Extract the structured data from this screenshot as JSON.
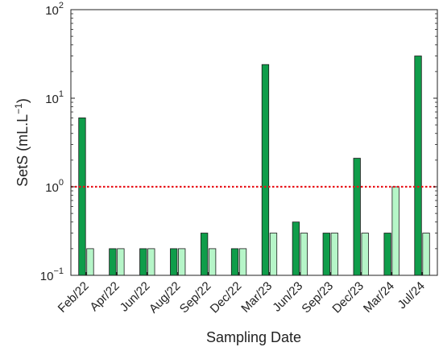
{
  "chart_data": {
    "type": "bar",
    "xlabel": "Sampling Date",
    "ylabel": "SetS (mL.L",
    "ylabel_sup": "−1",
    "ylabel_close": ")",
    "y_scale": "log",
    "ylim": [
      0.1,
      100
    ],
    "y_ticks": [
      {
        "value": 0.1,
        "base": "10",
        "exp": "−1"
      },
      {
        "value": 1,
        "base": "10",
        "exp": "0"
      },
      {
        "value": 10,
        "base": "10",
        "exp": "1"
      },
      {
        "value": 100,
        "base": "10",
        "exp": "2"
      }
    ],
    "categories": [
      "Feb/22",
      "Apr/22",
      "Jun/22",
      "Aug/22",
      "Sep/22",
      "Dec/22",
      "Mar/23",
      "Jun/23",
      "Sep/23",
      "Dec/23",
      "Mar/24",
      "Jul/24"
    ],
    "series": [
      {
        "color": "#0f9d4a",
        "values": [
          6,
          0.2,
          0.2,
          0.2,
          0.3,
          0.2,
          24,
          0.4,
          0.3,
          2.1,
          0.3,
          30
        ]
      },
      {
        "color": "#b6f5c8",
        "values": [
          0.2,
          0.2,
          0.2,
          0.2,
          0.2,
          0.2,
          0.3,
          0.3,
          0.3,
          0.3,
          1.0,
          0.3
        ]
      }
    ],
    "reference_line": {
      "value": 1,
      "color": "#e8141b",
      "style": "dotted"
    },
    "grid": false,
    "legend": "none"
  }
}
